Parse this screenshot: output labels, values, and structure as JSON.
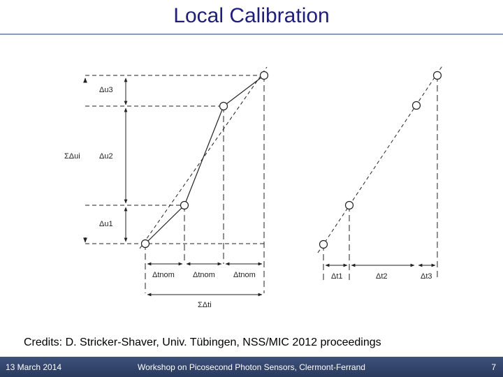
{
  "slide": {
    "title": "Local Calibration",
    "credits": "Credits: D. Stricker-Shaver, Univ. Tübingen, NSS/MIC 2012 proceedings"
  },
  "footer": {
    "date": "13 March 2014",
    "event": "Workshop on Picosecond Photon Sensors, Clermont-Ferrand",
    "page": "7"
  },
  "diagram": {
    "left_panel": {
      "delta_u_labels": [
        "Δu3",
        "Δu2",
        "Δu1"
      ],
      "sum_u_label": "ΣΔui",
      "delta_t_labels": [
        "Δtnom",
        "Δtnom",
        "Δtnom"
      ],
      "sum_t_label": "ΣΔti"
    },
    "right_panel": {
      "delta_t_labels": [
        "Δt1",
        "Δt2",
        "Δt3"
      ]
    }
  }
}
